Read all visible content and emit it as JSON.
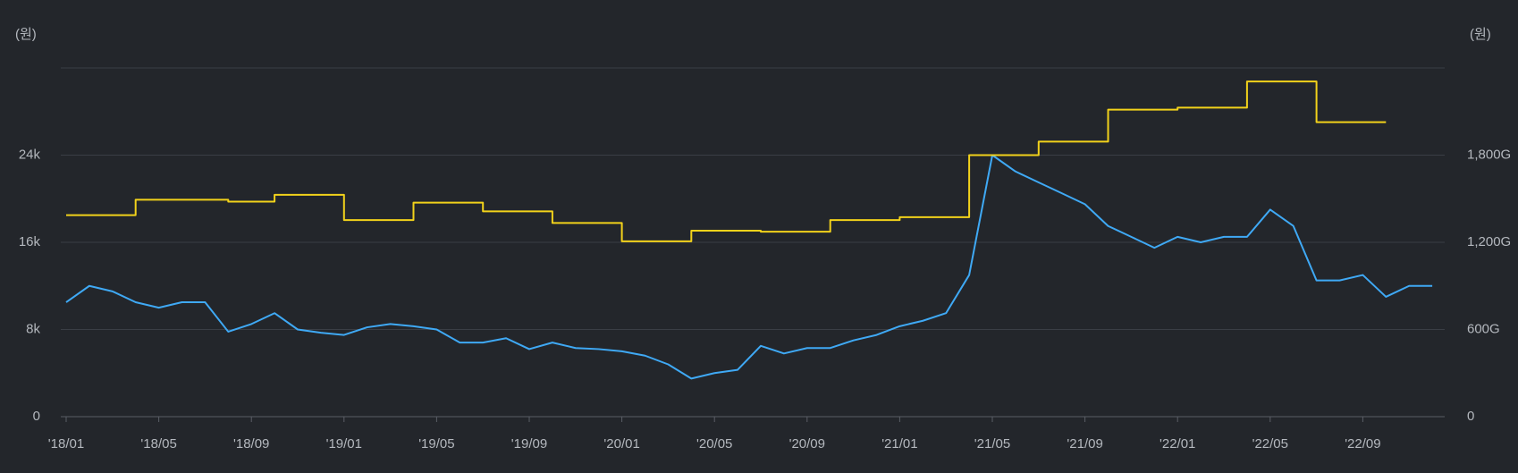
{
  "chart_data": {
    "type": "line",
    "y_label": "(원)",
    "y2_label": "(원)",
    "categories": [
      "'18/01",
      null,
      null,
      null,
      "'18/05",
      null,
      null,
      null,
      "'18/09",
      null,
      null,
      null,
      "'19/01",
      null,
      null,
      null,
      "'19/05",
      null,
      null,
      null,
      "'19/09",
      null,
      null,
      null,
      "'20/01",
      null,
      null,
      null,
      "'20/05",
      null,
      null,
      null,
      "'20/09",
      null,
      null,
      null,
      "'21/01",
      null,
      null,
      null,
      "'21/05",
      null,
      null,
      null,
      "'21/09",
      null,
      null,
      null,
      "'22/01",
      null,
      null,
      null,
      "'22/05",
      null,
      null,
      null,
      "'22/09",
      null,
      null,
      null
    ],
    "series": [
      {
        "color": "#3fa9f5",
        "axis": "y",
        "step": false,
        "values": [
          10500,
          12000,
          11500,
          10500,
          10000,
          10500,
          10500,
          7800,
          8500,
          9500,
          8000,
          7700,
          7500,
          8200,
          8500,
          8300,
          8000,
          6800,
          6800,
          7200,
          6200,
          6800,
          6300,
          6200,
          6000,
          5600,
          4800,
          3500,
          4000,
          4300,
          6500,
          5800,
          6300,
          6300,
          7000,
          7500,
          8300,
          8800,
          9500,
          13000,
          24000,
          22500,
          21500,
          20500,
          19500,
          17500,
          16500,
          15500,
          16500,
          16000,
          16500,
          16500,
          19000,
          17500,
          12500,
          12500,
          13000,
          11000,
          12000,
          12000
        ]
      },
      {
        "color": "#f2d21b",
        "axis": "y2",
        "step": true,
        "values": [
          1387,
          1387,
          1387,
          1493,
          1493,
          1493,
          1493,
          1480,
          1480,
          1527,
          1527,
          1527,
          1353,
          1353,
          1353,
          1473,
          1473,
          1473,
          1413,
          1413,
          1413,
          1333,
          1333,
          1333,
          1207,
          1207,
          1207,
          1280,
          1280,
          1280,
          1273,
          1273,
          1273,
          1353,
          1353,
          1353,
          1373,
          1373,
          1373,
          1800,
          1800,
          1800,
          1893,
          1893,
          1893,
          2113,
          2113,
          2113,
          2127,
          2127,
          2127,
          2307,
          2307,
          2307,
          2027,
          2027,
          2027,
          2027,
          null,
          null
        ]
      }
    ],
    "ylim": [
      0,
      32000
    ],
    "yticks": [
      0,
      {
        "value": 8000,
        "label": "8k"
      },
      {
        "value": 16000,
        "label": "16k"
      },
      {
        "value": 24000,
        "label": "24k"
      }
    ],
    "y2lim": [
      0,
      2400
    ],
    "y2ticks": [
      0,
      {
        "value": 600,
        "label": "600G"
      },
      {
        "value": 1200,
        "label": "1,200G"
      },
      {
        "value": 1800,
        "label": "1,800G"
      }
    ],
    "grid": true
  }
}
